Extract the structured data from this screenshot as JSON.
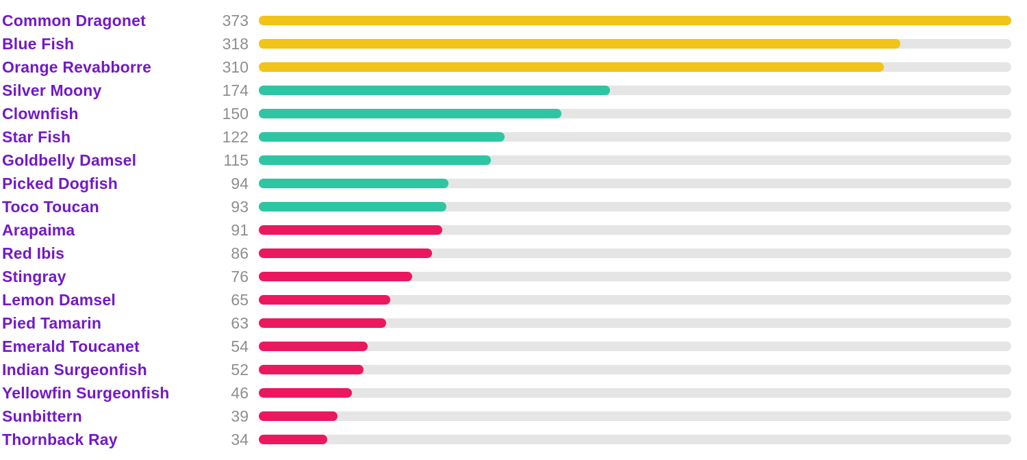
{
  "chart_data": {
    "type": "bar",
    "orientation": "horizontal",
    "title": "",
    "xlabel": "",
    "ylabel": "",
    "grid": false,
    "legend_position": "none",
    "max_value": 373,
    "xlim": [
      0,
      373
    ],
    "categories": [
      "Common Dragonet",
      "Blue Fish",
      "Orange Revabborre",
      "Silver Moony",
      "Clownfish",
      "Star Fish",
      "Goldbelly Damsel",
      "Picked Dogfish",
      "Toco Toucan",
      "Arapaima",
      "Red Ibis",
      "Stingray",
      "Lemon Damsel",
      "Pied Tamarin",
      "Emerald Toucanet",
      "Indian Surgeonfish",
      "Yellowfin Surgeonfish",
      "Sunbittern",
      "Thornback Ray"
    ],
    "values": [
      373,
      318,
      310,
      174,
      150,
      122,
      115,
      94,
      93,
      91,
      86,
      76,
      65,
      63,
      54,
      52,
      46,
      39,
      34
    ],
    "value_labels": [
      "373",
      "318",
      "310",
      "174",
      "150",
      "122",
      "115",
      "94",
      "93",
      "91",
      "86",
      "76",
      "65",
      "63",
      "54",
      "52",
      "46",
      "39",
      "34"
    ],
    "bar_colors": [
      "#f0c419",
      "#f0c419",
      "#f0c419",
      "#2ec5a2",
      "#2ec5a2",
      "#2ec5a2",
      "#2ec5a2",
      "#2ec5a2",
      "#2ec5a2",
      "#eb1860",
      "#eb1860",
      "#eb1860",
      "#eb1860",
      "#eb1860",
      "#eb1860",
      "#eb1860",
      "#eb1860",
      "#eb1860",
      "#eb1860"
    ],
    "palette": {
      "gold": "#f0c419",
      "teal": "#2ec5a2",
      "pink": "#eb1860"
    },
    "label_color": "#7219c9",
    "value_color": "#8e8e8e",
    "track_color": "#e5e5e5",
    "background_color": "#ffffff"
  }
}
